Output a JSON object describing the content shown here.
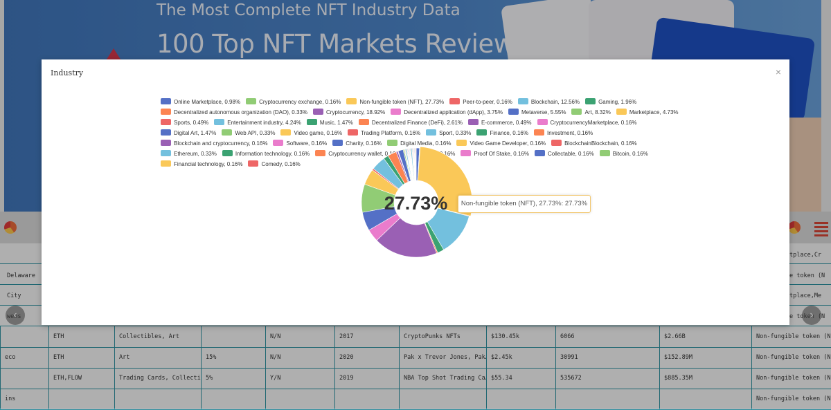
{
  "banner": {
    "subtitle": "The Most Complete NFT Industry Data",
    "title": "100 Top NFT Markets Review"
  },
  "table": {
    "right_column_partial": [
      "tplace,Cr",
      "e token (N",
      "tplace,Me",
      "e token (N"
    ],
    "left_column_partial": [
      "Delaware",
      "City",
      "weas"
    ],
    "rows": [
      {
        "c0": "",
        "c1": "ETH",
        "c2": "Collectibles, Art",
        "c3": "",
        "c4": "N/N",
        "c5": "2017",
        "c6": "CryptoPunks NFTs",
        "c7": "$130.45k",
        "c8": "6066",
        "c9": "$2.66B",
        "c10": "Non-fungible token (N"
      },
      {
        "c0": "eco",
        "c1": "ETH",
        "c2": "Art",
        "c3": "15%",
        "c4": "N/N",
        "c5": "2020",
        "c6": "Pak x Trevor Jones, Pak…",
        "c7": "$2.45k",
        "c8": "30991",
        "c9": "$152.89M",
        "c10": "Non-fungible token (N"
      },
      {
        "c0": "",
        "c1": "ETH,FLOW",
        "c2": "Trading Cards, Collecti…",
        "c3": "5%",
        "c4": "Y/N",
        "c5": "2019",
        "c6": "NBA Top Shot Trading Ca…",
        "c7": "$55.34",
        "c8": "535672",
        "c9": "$885.35M",
        "c10": "Non-fungible token (N"
      },
      {
        "c0": "ins",
        "c1": "",
        "c2": "",
        "c3": "",
        "c4": "",
        "c5": "",
        "c6": "",
        "c7": "",
        "c8": "",
        "c9": "",
        "c10": "Non-fungible token (N"
      }
    ]
  },
  "modal": {
    "title": "Industry",
    "close_glyph": "×",
    "center_label": "27.73%",
    "tooltip": "Non-fungible token (NFT), 27.73%: 27.73%"
  },
  "legend": [
    {
      "label": "Online Marketplace, 0.98%",
      "color": "#5470c6"
    },
    {
      "label": "Cryptocurrency exchange, 0.16%",
      "color": "#91cc75"
    },
    {
      "label": "Non-fungible token (NFT), 27.73%",
      "color": "#fac858"
    },
    {
      "label": "Peer-to-peer, 0.16%",
      "color": "#ee6666"
    },
    {
      "label": "Blockchain, 12.56%",
      "color": "#73c0de"
    },
    {
      "label": "Gaming, 1.96%",
      "color": "#3ba272"
    },
    {
      "label": "Decentralized autonomous organization (DAO), 0.33%",
      "color": "#fc8452"
    },
    {
      "label": "Cryptocurrency, 18.92%",
      "color": "#9a60b4"
    },
    {
      "label": "Decentralized application (dApp), 3.75%",
      "color": "#ea7ccc"
    },
    {
      "label": "Metaverse, 5.55%",
      "color": "#5470c6"
    },
    {
      "label": "Art, 8.32%",
      "color": "#91cc75"
    },
    {
      "label": "Marketplace, 4.73%",
      "color": "#fac858"
    },
    {
      "label": "Sports, 0.49%",
      "color": "#ee6666"
    },
    {
      "label": "Entertainment industry, 4.24%",
      "color": "#73c0de"
    },
    {
      "label": "Music, 1.47%",
      "color": "#3ba272"
    },
    {
      "label": "Decentralized Finance (DeFi), 2.61%",
      "color": "#fc8452"
    },
    {
      "label": "E-commerce, 0.49%",
      "color": "#9a60b4"
    },
    {
      "label": "CryptocurrencyMarketplace, 0.16%",
      "color": "#ea7ccc"
    },
    {
      "label": "Digital Art, 1.47%",
      "color": "#5470c6"
    },
    {
      "label": "Web API, 0.33%",
      "color": "#91cc75"
    },
    {
      "label": "Video game, 0.16%",
      "color": "#fac858"
    },
    {
      "label": "Trading Platform, 0.16%",
      "color": "#ee6666"
    },
    {
      "label": "Sport, 0.33%",
      "color": "#73c0de"
    },
    {
      "label": "Finance, 0.16%",
      "color": "#3ba272"
    },
    {
      "label": "Investment, 0.16%",
      "color": "#fc8452"
    },
    {
      "label": "Blockchain and cryptocurrency, 0.16%",
      "color": "#9a60b4"
    },
    {
      "label": "Software, 0.16%",
      "color": "#ea7ccc"
    },
    {
      "label": "Charity, 0.16%",
      "color": "#5470c6"
    },
    {
      "label": "Digital Media, 0.16%",
      "color": "#91cc75"
    },
    {
      "label": "Video Game Developer, 0.16%",
      "color": "#fac858"
    },
    {
      "label": "BlockchainBlockchain, 0.16%",
      "color": "#ee6666"
    },
    {
      "label": "Ethereum, 0.33%",
      "color": "#73c0de"
    },
    {
      "label": "Information technology, 0.16%",
      "color": "#3ba272"
    },
    {
      "label": "Cryptocurrency wallet, 0.16%",
      "color": "#fc8452"
    },
    {
      "label": "Casino, 0.16%",
      "color": "#9a60b4"
    },
    {
      "label": "Proof Of Stake, 0.16%",
      "color": "#ea7ccc"
    },
    {
      "label": "Collectable, 0.16%",
      "color": "#5470c6"
    },
    {
      "label": "Bitcoin, 0.16%",
      "color": "#91cc75"
    },
    {
      "label": "Financial technology, 0.16%",
      "color": "#fac858"
    },
    {
      "label": "Comedy, 0.16%",
      "color": "#ee6666"
    }
  ],
  "chart_data": {
    "type": "pie",
    "title": "Industry",
    "highlighted": "Non-fungible token (NFT)",
    "slices": [
      {
        "name": "Online Marketplace",
        "value": 0.98
      },
      {
        "name": "Cryptocurrency exchange",
        "value": 0.16
      },
      {
        "name": "Non-fungible token (NFT)",
        "value": 27.73
      },
      {
        "name": "Peer-to-peer",
        "value": 0.16
      },
      {
        "name": "Blockchain",
        "value": 12.56
      },
      {
        "name": "Gaming",
        "value": 1.96
      },
      {
        "name": "Decentralized autonomous organization (DAO)",
        "value": 0.33
      },
      {
        "name": "Cryptocurrency",
        "value": 18.92
      },
      {
        "name": "Decentralized application (dApp)",
        "value": 3.75
      },
      {
        "name": "Metaverse",
        "value": 5.55
      },
      {
        "name": "Art",
        "value": 8.32
      },
      {
        "name": "Marketplace",
        "value": 4.73
      },
      {
        "name": "Sports",
        "value": 0.49
      },
      {
        "name": "Entertainment industry",
        "value": 4.24
      },
      {
        "name": "Music",
        "value": 1.47
      },
      {
        "name": "Decentralized Finance (DeFi)",
        "value": 2.61
      },
      {
        "name": "E-commerce",
        "value": 0.49
      },
      {
        "name": "CryptocurrencyMarketplace",
        "value": 0.16
      },
      {
        "name": "Digital Art",
        "value": 1.47
      },
      {
        "name": "Web API",
        "value": 0.33
      },
      {
        "name": "Video game",
        "value": 0.16
      },
      {
        "name": "Trading Platform",
        "value": 0.16
      },
      {
        "name": "Sport",
        "value": 0.33
      },
      {
        "name": "Finance",
        "value": 0.16
      },
      {
        "name": "Investment",
        "value": 0.16
      },
      {
        "name": "Blockchain and cryptocurrency",
        "value": 0.16
      },
      {
        "name": "Software",
        "value": 0.16
      },
      {
        "name": "Charity",
        "value": 0.16
      },
      {
        "name": "Digital Media",
        "value": 0.16
      },
      {
        "name": "Video Game Developer",
        "value": 0.16
      },
      {
        "name": "BlockchainBlockchain",
        "value": 0.16
      },
      {
        "name": "Ethereum",
        "value": 0.33
      },
      {
        "name": "Information technology",
        "value": 0.16
      },
      {
        "name": "Cryptocurrency wallet",
        "value": 0.16
      },
      {
        "name": "Casino",
        "value": 0.16
      },
      {
        "name": "Proof Of Stake",
        "value": 0.16
      },
      {
        "name": "Collectable",
        "value": 0.16
      },
      {
        "name": "Bitcoin",
        "value": 0.16
      },
      {
        "name": "Financial technology",
        "value": 0.16
      },
      {
        "name": "Comedy",
        "value": 0.16
      }
    ]
  },
  "colors": {
    "palette": [
      "#5470c6",
      "#91cc75",
      "#fac858",
      "#ee6666",
      "#73c0de",
      "#3ba272",
      "#fc8452",
      "#9a60b4",
      "#ea7ccc"
    ],
    "tooltip_border": "#f2c66d",
    "table_grid": "#2c8f9f"
  },
  "icons": {
    "chart_toggle": "pie-chart-icon",
    "list_toggle": "menu-icon",
    "prev": "chevron-left-icon",
    "next": "chevron-right-icon",
    "prev_glyph": "‹",
    "next_glyph": "›"
  }
}
